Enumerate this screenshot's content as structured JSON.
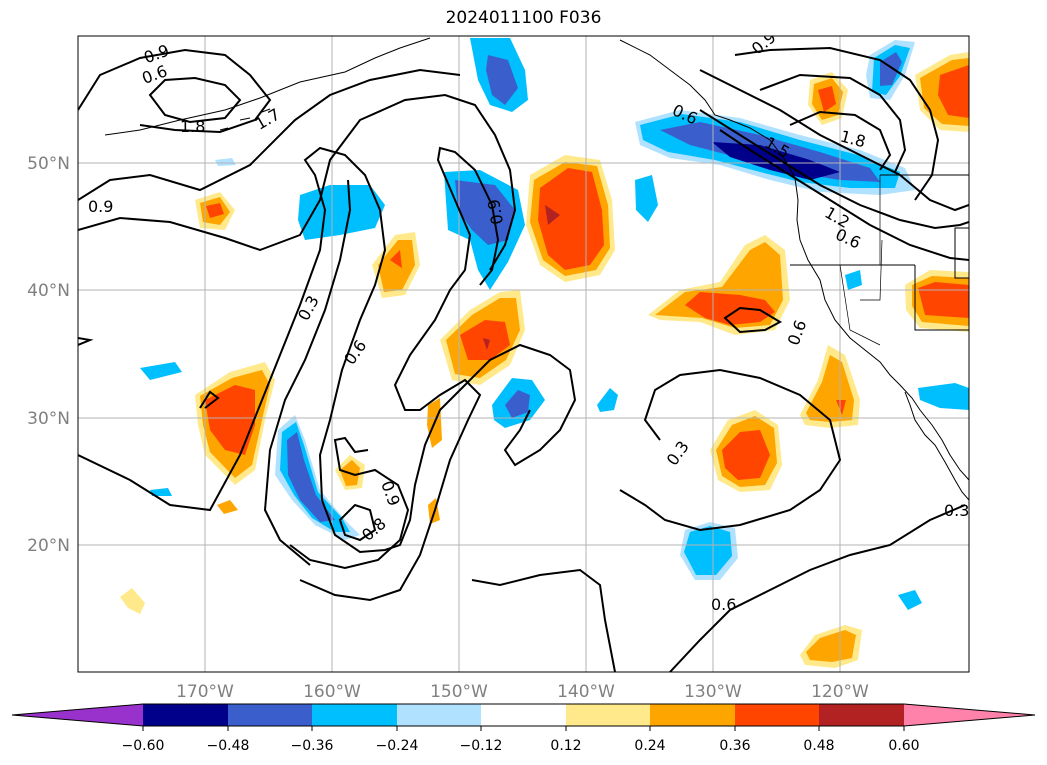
{
  "title": "2024011100 F036",
  "lon_labels": [
    "170°W",
    "160°W",
    "150°W",
    "140°W",
    "130°W",
    "120°W"
  ],
  "lat_labels": [
    "50°N",
    "40°N",
    "30°N",
    "20°N"
  ],
  "colorbar": {
    "tick_labels": [
      "−0.60",
      "−0.48",
      "−0.36",
      "−0.24",
      "−0.12",
      "0.12",
      "0.24",
      "0.36",
      "0.48",
      "0.60"
    ],
    "colors": [
      "#9932cc",
      "#00008b",
      "#3a5fcd",
      "#00bfff",
      "#b0e2ff",
      "#ffffff",
      "#ffe98a",
      "#ffa500",
      "#ff4500",
      "#b22222",
      "#ff82ab"
    ]
  },
  "contour_labels": [
    "0.6",
    "0.9",
    "1.8",
    "1.7",
    "0.9",
    "0.3",
    "0.6",
    "0.9",
    "0.9",
    "0.8",
    "0.3",
    "0.6",
    "0.6",
    "0.9",
    "1.8",
    "1.5",
    "1.2",
    "0.6",
    "0.3",
    "0.6"
  ]
}
